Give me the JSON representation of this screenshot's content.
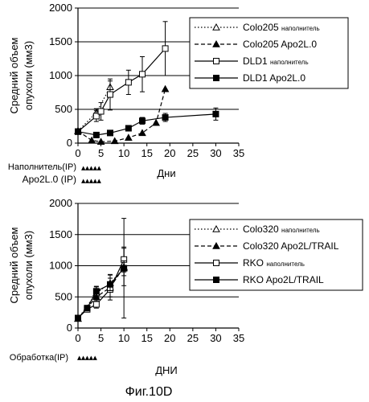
{
  "figure_caption": "Фиг.10D",
  "chart_data": [
    {
      "type": "line",
      "xlabel": "Дни",
      "ylabel": "Средний объем опухоли (мм3)",
      "ylabel_lines": [
        "Средний объем",
        "опухоли (мм3)"
      ],
      "xlim": [
        0,
        35
      ],
      "ylim": [
        0,
        2000
      ],
      "xticks": [
        0,
        5,
        10,
        15,
        20,
        25,
        30,
        35
      ],
      "yticks": [
        0,
        500,
        1000,
        1500,
        2000
      ],
      "grid": "horizontal",
      "legend_position": "top-right",
      "series": [
        {
          "name": "Colo205",
          "name_suffix": "наполнитель",
          "marker": "triangle-open",
          "line": "dotted",
          "x": [
            0,
            4,
            7
          ],
          "y": [
            180,
            450,
            830
          ],
          "err": [
            0,
            60,
            90
          ]
        },
        {
          "name": "Colo205",
          "name_suffix": "Apo2L.0",
          "marker": "triangle-filled",
          "line": "dashed",
          "x": [
            0,
            3,
            5,
            8,
            11,
            14,
            17,
            19
          ],
          "y": [
            180,
            40,
            20,
            30,
            80,
            150,
            300,
            800
          ],
          "err": [
            0,
            0,
            0,
            0,
            0,
            0,
            0,
            0
          ]
        },
        {
          "name": "DLD1",
          "name_suffix": "наполнитель",
          "marker": "square-open",
          "line": "solid",
          "x": [
            0,
            4,
            5,
            7,
            11,
            14,
            19
          ],
          "y": [
            170,
            400,
            470,
            720,
            900,
            1020,
            1400
          ],
          "err": [
            0,
            80,
            130,
            230,
            180,
            260,
            400
          ]
        },
        {
          "name": "DLD1",
          "name_suffix": "Apo2L.0",
          "marker": "square-filled",
          "line": "solid",
          "x": [
            0,
            4,
            7,
            11,
            14,
            19,
            30
          ],
          "y": [
            170,
            120,
            150,
            220,
            330,
            380,
            430
          ],
          "err": [
            0,
            20,
            20,
            25,
            50,
            60,
            90
          ]
        }
      ],
      "treatments": [
        {
          "label": "Наполнитель(IP)",
          "marks": "▲▲▲▲▲"
        },
        {
          "label": "Apo2L.0 (IP)",
          "marks": "▲▲▲▲▲"
        }
      ]
    },
    {
      "type": "line",
      "xlabel": "ДНИ",
      "ylabel": "Средний объем опухоли (мм3)",
      "ylabel_lines": [
        "Средний объем",
        "опухоли (мм3)"
      ],
      "xlim": [
        0,
        35
      ],
      "ylim": [
        0,
        2000
      ],
      "xticks": [
        0,
        5,
        10,
        15,
        20,
        25,
        30,
        35
      ],
      "yticks": [
        0,
        500,
        1000,
        1500,
        2000
      ],
      "grid": "horizontal",
      "legend_position": "top-right",
      "series": [
        {
          "name": "Colo320",
          "name_suffix": "наполнитель",
          "marker": "triangle-open",
          "line": "dotted",
          "x": [
            0,
            4,
            7,
            10
          ],
          "y": [
            150,
            560,
            720,
            960
          ],
          "err": [
            0,
            100,
            140,
            800
          ]
        },
        {
          "name": "Colo320",
          "name_suffix": "Apo2L/TRAIL",
          "marker": "triangle-filled",
          "line": "dashed",
          "x": [
            0,
            4,
            7,
            10
          ],
          "y": [
            150,
            500,
            650,
            980
          ],
          "err": [
            0,
            90,
            200,
            300
          ]
        },
        {
          "name": "RKO",
          "name_suffix": "наполнитель",
          "marker": "square-open",
          "line": "solid",
          "x": [
            0,
            2,
            4,
            7,
            10
          ],
          "y": [
            160,
            300,
            380,
            620,
            1100
          ],
          "err": [
            0,
            30,
            60,
            120,
            200
          ]
        },
        {
          "name": "RKO",
          "name_suffix": "Apo2L/TRAIL",
          "marker": "square-filled",
          "line": "solid",
          "x": [
            0,
            2,
            4,
            7,
            10
          ],
          "y": [
            160,
            320,
            590,
            700,
            960
          ],
          "err": [
            0,
            40,
            80,
            100,
            120
          ]
        }
      ],
      "treatments": [
        {
          "label": "Обработка(IP)",
          "marks": "▲▲▲▲▲"
        }
      ]
    }
  ]
}
